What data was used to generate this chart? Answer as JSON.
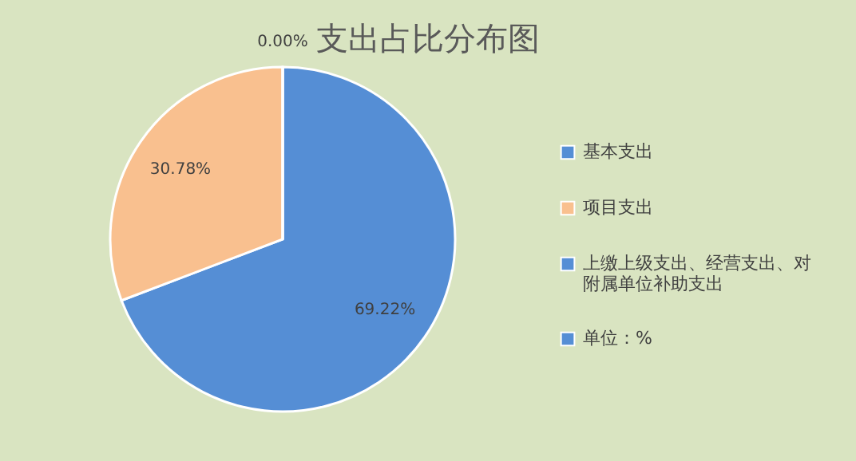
{
  "chart_data": {
    "type": "pie",
    "title": "支出占比分布图",
    "categories": [
      "基本支出",
      "项目支出",
      "上缴上级支出、经营支出、对附属单位补助支出",
      "单位：%"
    ],
    "values": [
      69.22,
      30.78,
      0,
      0
    ],
    "colors": [
      "#558ed5",
      "#f9c08f",
      "#558ed5",
      "#558ed5"
    ],
    "value_labels": [
      "69.22%",
      "30.78%",
      "0.00%",
      null
    ],
    "legend": "right"
  }
}
